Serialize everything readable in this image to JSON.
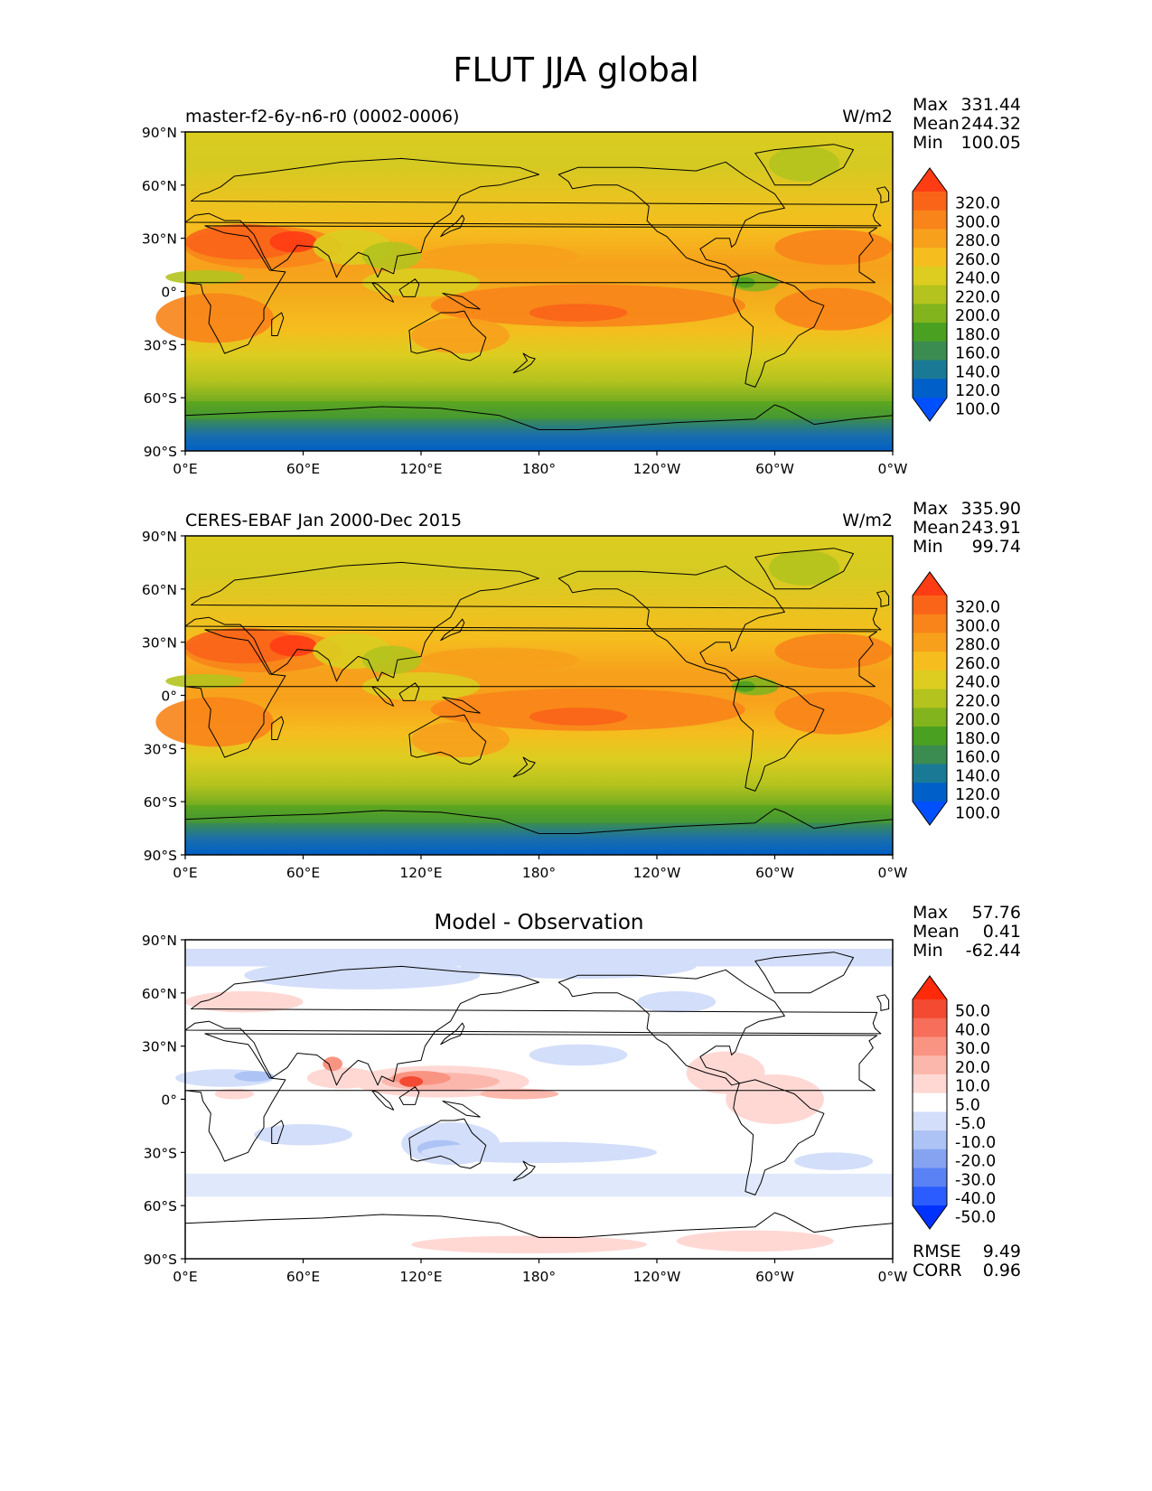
{
  "title": "FLUT JJA global",
  "panels": [
    {
      "id": "test",
      "left_label": "master-f2-6y-n6-r0 (0002-0006)",
      "center_label": "",
      "units": "W/m2",
      "stats": [
        {
          "label": "Max",
          "value": "331.44"
        },
        {
          "label": "Mean",
          "value": "244.32"
        },
        {
          "label": "Min",
          "value": "100.05"
        }
      ],
      "extra_stats": [],
      "colorbar": {
        "ticks": [
          "320.0",
          "300.0",
          "280.0",
          "260.0",
          "240.0",
          "220.0",
          "200.0",
          "180.0",
          "160.0",
          "140.0",
          "120.0",
          "100.0"
        ],
        "colors": [
          "#0050ff",
          "#005fc8",
          "#1a7a96",
          "#3b8c50",
          "#4aa020",
          "#82b41e",
          "#b4c31e",
          "#dccd20",
          "#f5be1e",
          "#f7a01c",
          "#f8841a",
          "#fa6419",
          "#ff3c14"
        ]
      }
    },
    {
      "id": "reference",
      "left_label": "CERES-EBAF Jan 2000-Dec 2015",
      "center_label": "",
      "units": "W/m2",
      "stats": [
        {
          "label": "Max",
          "value": "335.90"
        },
        {
          "label": "Mean",
          "value": "243.91"
        },
        {
          "label": "Min",
          "value": "99.74"
        }
      ],
      "extra_stats": [],
      "colorbar": {
        "ticks": [
          "320.0",
          "300.0",
          "280.0",
          "260.0",
          "240.0",
          "220.0",
          "200.0",
          "180.0",
          "160.0",
          "140.0",
          "120.0",
          "100.0"
        ],
        "colors": [
          "#0050ff",
          "#005fc8",
          "#1a7a96",
          "#3b8c50",
          "#4aa020",
          "#82b41e",
          "#b4c31e",
          "#dccd20",
          "#f5be1e",
          "#f7a01c",
          "#f8841a",
          "#fa6419",
          "#ff3c14"
        ]
      }
    },
    {
      "id": "difference",
      "left_label": "",
      "center_label": "Model - Observation",
      "units": "",
      "stats": [
        {
          "label": "Max",
          "value": "57.76"
        },
        {
          "label": "Mean",
          "value": "0.41"
        },
        {
          "label": "Min",
          "value": "-62.44"
        }
      ],
      "extra_stats": [
        {
          "label": "RMSE",
          "value": "9.49"
        },
        {
          "label": "CORR",
          "value": "0.96"
        }
      ],
      "colorbar": {
        "ticks": [
          "50.0",
          "40.0",
          "30.0",
          "20.0",
          "10.0",
          "5.0",
          "-5.0",
          "-10.0",
          "-20.0",
          "-30.0",
          "-40.0",
          "-50.0"
        ],
        "colors": [
          "#0032ff",
          "#2a5cff",
          "#5a82f5",
          "#86a3f2",
          "#aec3f5",
          "#d3defa",
          "#ffffff",
          "#ffd8d4",
          "#fcb7ad",
          "#fa9482",
          "#f76e5a",
          "#f44a32",
          "#ff2a0a"
        ]
      }
    }
  ],
  "axes": {
    "x_ticks": [
      "0°E",
      "60°E",
      "120°E",
      "180°",
      "120°W",
      "60°W",
      "0°W"
    ],
    "y_ticks": [
      "90°N",
      "60°N",
      "30°N",
      "0°",
      "30°S",
      "60°S",
      "90°S"
    ]
  },
  "chart_data": [
    {
      "type": "heatmap",
      "subplot": "test",
      "title": "master-f2-6y-n6-r0 (0002-0006)",
      "units": "W/m2",
      "xlim": [
        0,
        360
      ],
      "ylim": [
        -90,
        90
      ],
      "clevels": [
        100,
        120,
        140,
        160,
        180,
        200,
        220,
        240,
        260,
        280,
        300,
        320
      ],
      "max": 331.44,
      "mean": 244.32,
      "min": 100.05
    },
    {
      "type": "heatmap",
      "subplot": "reference",
      "title": "CERES-EBAF Jan 2000-Dec 2015",
      "units": "W/m2",
      "xlim": [
        0,
        360
      ],
      "ylim": [
        -90,
        90
      ],
      "clevels": [
        100,
        120,
        140,
        160,
        180,
        200,
        220,
        240,
        260,
        280,
        300,
        320
      ],
      "max": 335.9,
      "mean": 243.91,
      "min": 99.74
    },
    {
      "type": "heatmap",
      "subplot": "difference",
      "title": "Model - Observation",
      "xlim": [
        0,
        360
      ],
      "ylim": [
        -90,
        90
      ],
      "clevels": [
        -50,
        -40,
        -30,
        -20,
        -10,
        -5,
        5,
        10,
        20,
        30,
        40,
        50
      ],
      "max": 57.76,
      "mean": 0.41,
      "min": -62.44,
      "rmse": 9.49,
      "corr": 0.96
    }
  ]
}
